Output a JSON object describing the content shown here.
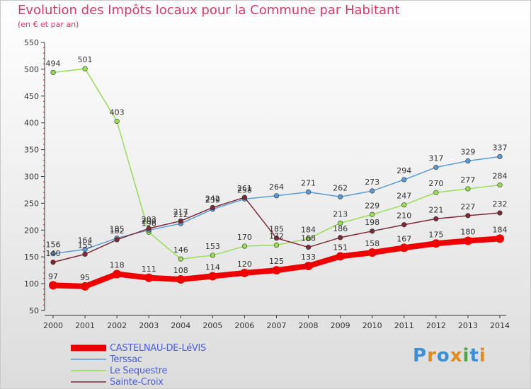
{
  "title": "Evolution des Impôts locaux pour la Commune par Habitant",
  "subtitle": "(en € et par an)",
  "logo": "Proxiti",
  "chart_data": {
    "type": "line",
    "title": "Evolution des Impôts locaux pour la Commune par Habitant",
    "subtitle": "(en € et par an)",
    "xlabel": "",
    "ylabel": "",
    "x": [
      "2000",
      "2001",
      "2002",
      "2003",
      "2004",
      "2005",
      "2006",
      "2007",
      "2008",
      "2009",
      "2010",
      "2011",
      "2012",
      "2013",
      "2014"
    ],
    "ylim": [
      50,
      550
    ],
    "yticks": [
      50,
      100,
      150,
      200,
      250,
      300,
      350,
      400,
      450,
      500,
      550
    ],
    "grid": false,
    "legend": "bottom-left",
    "series": [
      {
        "name": "CASTELNAU-DE-LéVIS",
        "color": "#ee0000",
        "values": [
          97,
          95,
          118,
          111,
          108,
          114,
          120,
          125,
          133,
          151,
          158,
          167,
          175,
          180,
          184
        ]
      },
      {
        "name": "Terssac",
        "color": "#5b9bd5",
        "values": [
          156,
          164,
          185,
          200,
          212,
          239,
          258,
          264,
          271,
          262,
          273,
          294,
          317,
          329,
          337
        ]
      },
      {
        "name": "Le Sequestre",
        "color": "#99dd55",
        "values": [
          494,
          501,
          403,
          196,
          146,
          153,
          170,
          172,
          184,
          213,
          229,
          247,
          270,
          277,
          284
        ]
      },
      {
        "name": "Sainte-Croix",
        "color": "#7a2a35",
        "values": [
          140,
          155,
          182,
          203,
          217,
          242,
          261,
          185,
          168,
          186,
          198,
          210,
          221,
          227,
          232
        ]
      }
    ],
    "data_labels": [
      {
        "series": 0,
        "values": [
          "97",
          "95",
          "118",
          "111",
          "108",
          "114",
          "120",
          "125",
          "133",
          "151",
          "158",
          "167",
          "175",
          "180",
          "184"
        ]
      },
      {
        "series": 1,
        "values": [
          "156",
          "164",
          "185",
          "200",
          "212",
          "239",
          "258",
          "264",
          "271",
          "262",
          "273",
          "294",
          "317",
          "329",
          "337"
        ]
      },
      {
        "series": 2,
        "values": [
          "494",
          "501",
          "403",
          "196",
          "146",
          "153",
          "170",
          "172",
          "184",
          "213",
          "229",
          "247",
          "270",
          "277",
          "284"
        ]
      },
      {
        "series": 3,
        "values": [
          "140",
          "155",
          "182",
          "203",
          "217",
          "242",
          "261",
          "185",
          "168",
          "186",
          "198",
          "210",
          "221",
          "227",
          "232"
        ]
      }
    ]
  }
}
